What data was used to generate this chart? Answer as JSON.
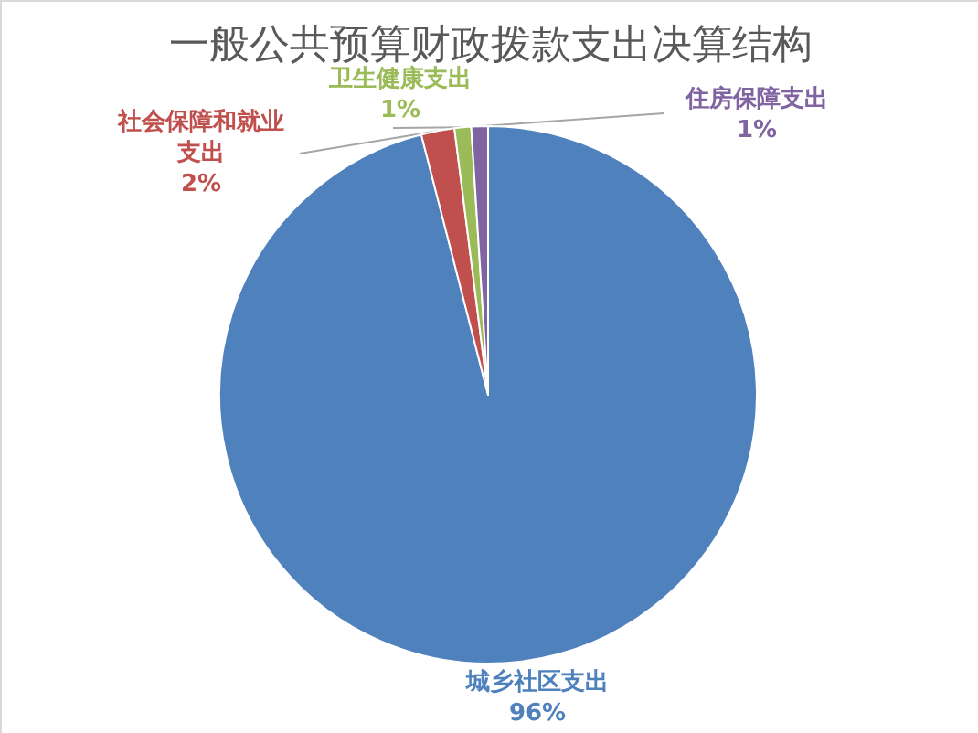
{
  "chart_data": {
    "type": "pie",
    "title": "一般公共预算财政拨款支出决算结构",
    "categories": [
      "城乡社区支出",
      "社会保障和就业支出",
      "卫生健康支出",
      "住房保障支出"
    ],
    "values": [
      96,
      2,
      1,
      1
    ],
    "colors": [
      "#4f81bd",
      "#c0504d",
      "#9bbb59",
      "#8064a2"
    ],
    "value_labels": [
      "96%",
      "2%",
      "1%",
      "1%"
    ]
  }
}
